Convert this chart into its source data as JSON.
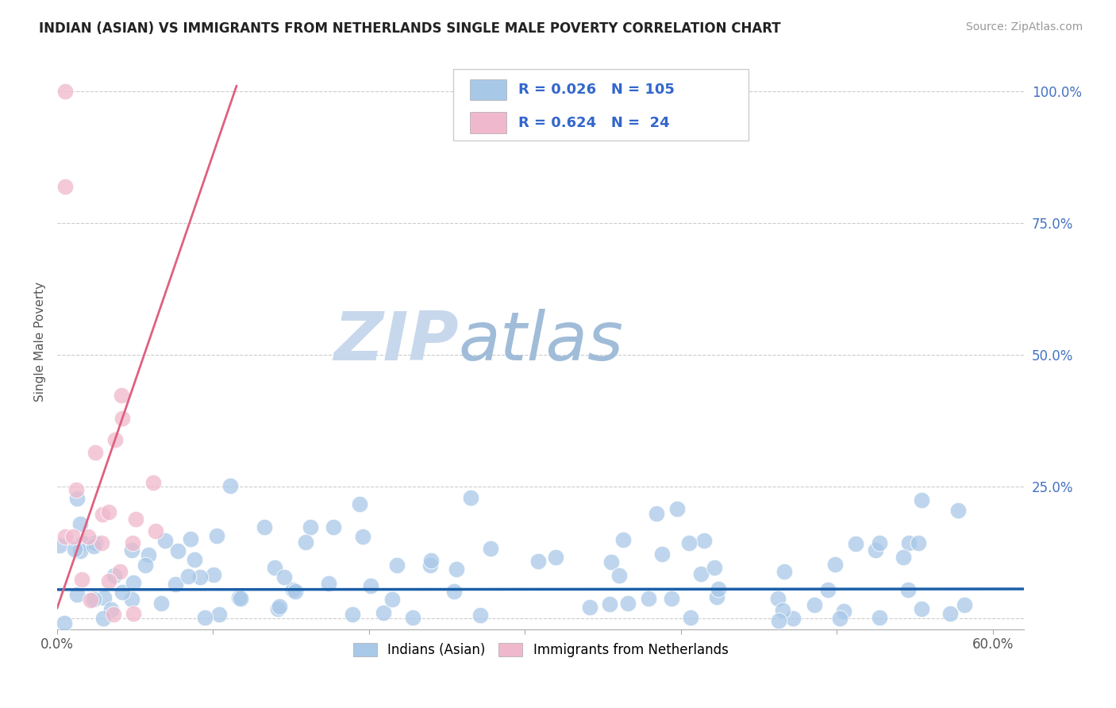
{
  "title": "INDIAN (ASIAN) VS IMMIGRANTS FROM NETHERLANDS SINGLE MALE POVERTY CORRELATION CHART",
  "source": "Source: ZipAtlas.com",
  "ylabel": "Single Male Poverty",
  "xlim": [
    0.0,
    0.62
  ],
  "ylim": [
    -0.02,
    1.07
  ],
  "xticks": [
    0.0,
    0.1,
    0.2,
    0.3,
    0.4,
    0.5,
    0.6
  ],
  "xticklabels": [
    "0.0%",
    "",
    "",
    "",
    "",
    "",
    "60.0%"
  ],
  "yticks": [
    0.0,
    0.25,
    0.5,
    0.75,
    1.0
  ],
  "yticklabels": [
    "",
    "25.0%",
    "50.0%",
    "75.0%",
    "100.0%"
  ],
  "background_color": "#ffffff",
  "grid_color": "#cccccc",
  "blue_color": "#a8c8e8",
  "pink_color": "#f0b8cc",
  "blue_line_color": "#1a5fa8",
  "pink_line_color": "#e06080",
  "r_blue": 0.026,
  "n_blue": 105,
  "r_pink": 0.624,
  "n_pink": 24,
  "legend_label_blue": "Indians (Asian)",
  "legend_label_pink": "Immigrants from Netherlands",
  "blue_line_y": 0.055,
  "blue_line_slope": 0.002,
  "pink_line_x0": 0.0,
  "pink_line_y0": 0.02,
  "pink_line_x1": 0.115,
  "pink_line_y1": 1.01
}
